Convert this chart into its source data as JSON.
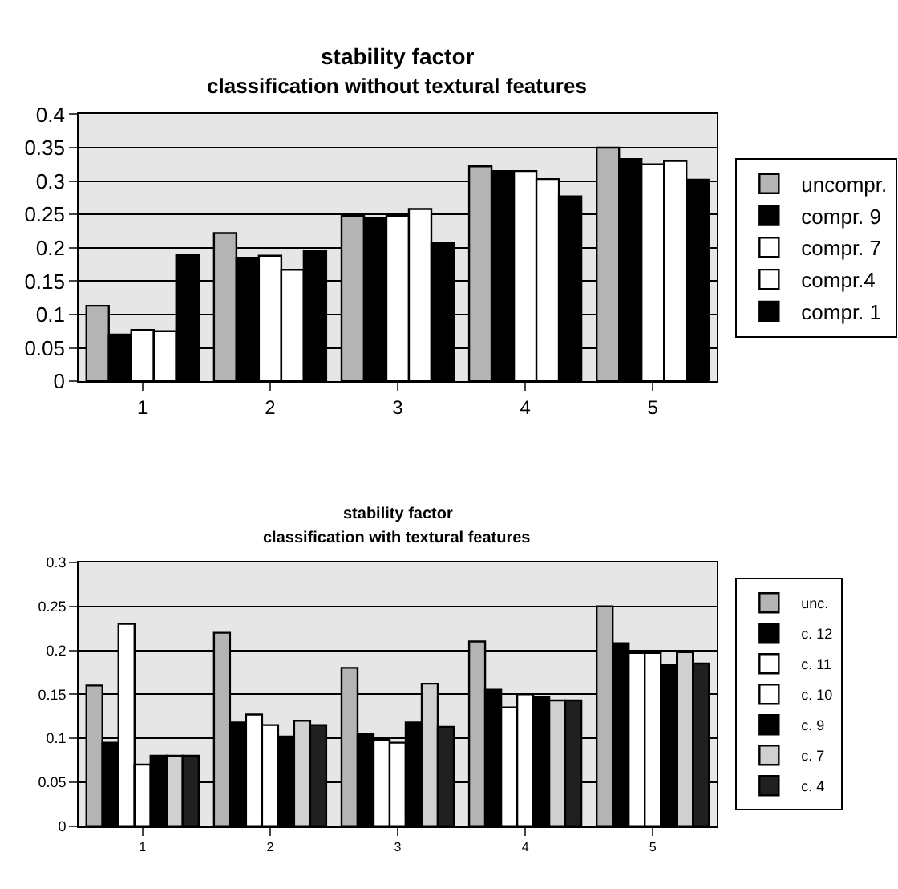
{
  "chart_data": [
    {
      "type": "bar",
      "title": "stability factor",
      "subtitle": "classification without textural features",
      "categories": [
        "1",
        "2",
        "3",
        "4",
        "5"
      ],
      "ylim": [
        0,
        0.4
      ],
      "yticks": [
        0,
        0.05,
        0.1,
        0.15,
        0.2,
        0.25,
        0.3,
        0.35,
        0.4
      ],
      "grid": "y",
      "legend": "right",
      "series": [
        {
          "name": "uncompr.",
          "color": "#b4b4b4",
          "values": [
            0.113,
            0.222,
            0.248,
            0.322,
            0.35
          ]
        },
        {
          "name": "compr. 9",
          "color": "#000000",
          "values": [
            0.07,
            0.185,
            0.245,
            0.315,
            0.333
          ]
        },
        {
          "name": "compr. 7",
          "color": "#ffffff",
          "values": [
            0.077,
            0.188,
            0.248,
            0.315,
            0.325
          ]
        },
        {
          "name": "compr.4",
          "color": "#ffffff",
          "values": [
            0.075,
            0.167,
            0.258,
            0.303,
            0.33
          ]
        },
        {
          "name": "compr. 1",
          "color": "#000000",
          "values": [
            0.19,
            0.195,
            0.208,
            0.277,
            0.302
          ]
        }
      ]
    },
    {
      "type": "bar",
      "title": "stability factor",
      "subtitle": "classification with textural features",
      "categories": [
        "1",
        "2",
        "3",
        "4",
        "5"
      ],
      "ylim": [
        0,
        0.3
      ],
      "yticks": [
        0,
        0.05,
        0.1,
        0.15,
        0.2,
        0.25,
        0.3
      ],
      "grid": "y",
      "legend": "right",
      "series": [
        {
          "name": "unc.",
          "color": "#b4b4b4",
          "values": [
            0.16,
            0.22,
            0.18,
            0.21,
            0.25
          ]
        },
        {
          "name": "c. 12",
          "color": "#000000",
          "values": [
            0.095,
            0.118,
            0.105,
            0.155,
            0.208
          ]
        },
        {
          "name": "c. 11",
          "color": "#ffffff",
          "values": [
            0.23,
            0.127,
            0.098,
            0.135,
            0.197
          ]
        },
        {
          "name": "c. 10",
          "color": "#ffffff",
          "values": [
            0.07,
            0.115,
            0.095,
            0.15,
            0.197
          ]
        },
        {
          "name": "c. 9",
          "color": "#000000",
          "values": [
            0.08,
            0.102,
            0.118,
            0.147,
            0.183
          ]
        },
        {
          "name": "c. 7",
          "color": "#d0d0d0",
          "values": [
            0.08,
            0.12,
            0.162,
            0.143,
            0.198
          ]
        },
        {
          "name": "c. 4",
          "color": "#202020",
          "values": [
            0.08,
            0.115,
            0.113,
            0.143,
            0.185
          ]
        }
      ]
    }
  ]
}
